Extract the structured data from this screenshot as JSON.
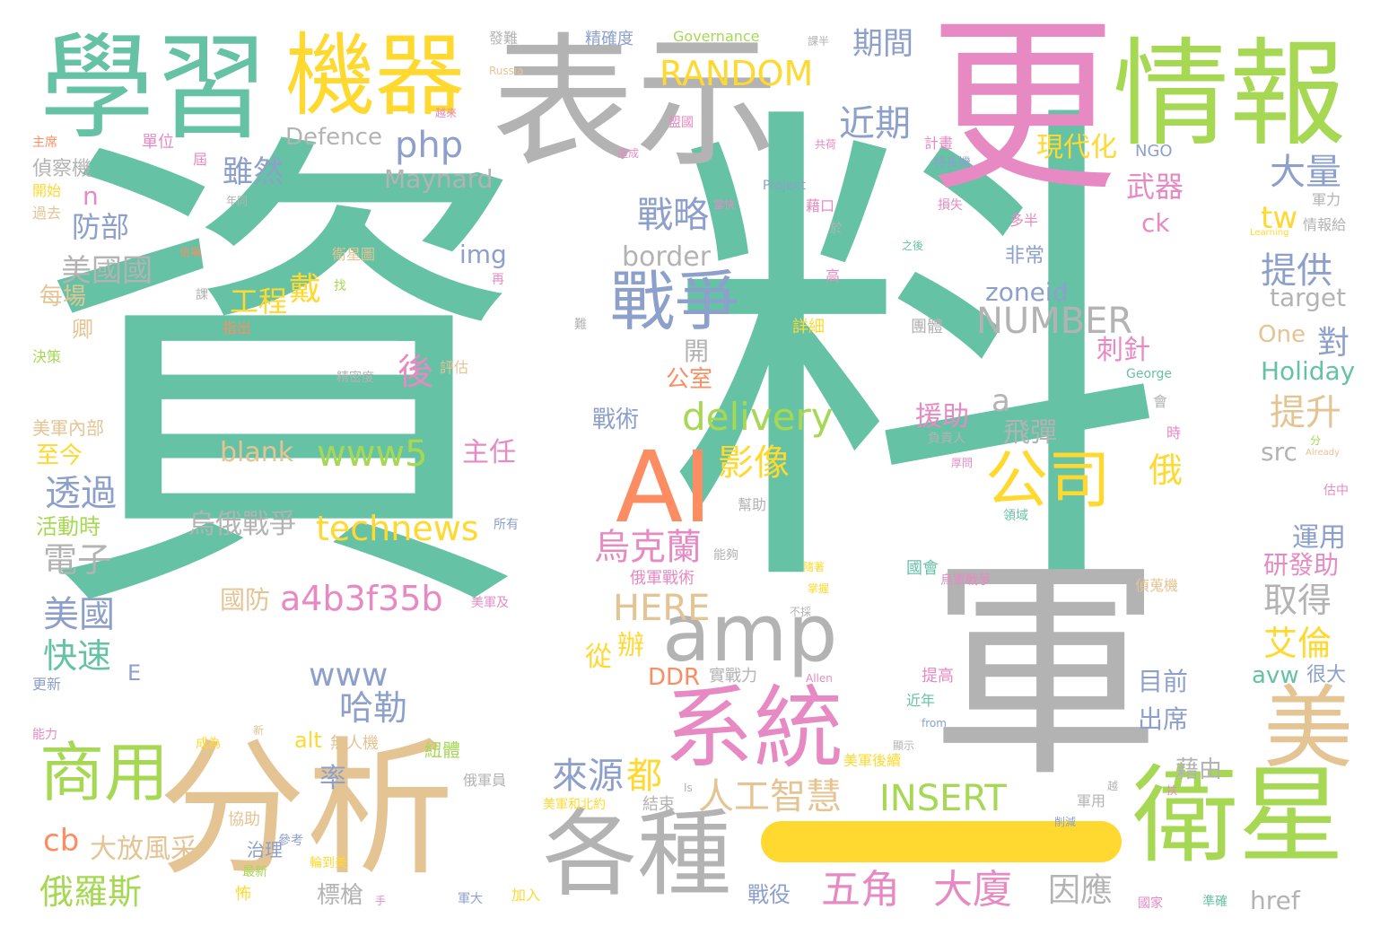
{
  "colors": {
    "teal": "#66c2a5",
    "gray": "#b3b3b3",
    "pink": "#e78ac3",
    "green": "#a6d854",
    "yellow": "#ffd92f",
    "tan": "#e5c494",
    "blue": "#8da0cb",
    "orange": "#fc8d62"
  },
  "separator_color": "yellow",
  "words": [
    {
      "text": "資",
      "color": "teal"
    },
    {
      "text": "料",
      "color": "teal"
    },
    {
      "text": "軍",
      "color": "gray"
    },
    {
      "text": "更",
      "color": "pink"
    },
    {
      "text": "表示",
      "color": "gray"
    },
    {
      "text": "學習",
      "color": "teal"
    },
    {
      "text": "機器",
      "color": "yellow"
    },
    {
      "text": "情報",
      "color": "green"
    },
    {
      "text": "分析",
      "color": "tan"
    },
    {
      "text": "衛星",
      "color": "green"
    },
    {
      "text": "各種",
      "color": "gray"
    },
    {
      "text": "系統",
      "color": "pink"
    },
    {
      "text": "AI",
      "color": "orange"
    },
    {
      "text": "amp",
      "color": "gray"
    },
    {
      "text": "美",
      "color": "tan"
    },
    {
      "text": "戰爭",
      "color": "blue"
    },
    {
      "text": "公司",
      "color": "yellow"
    },
    {
      "text": "商用",
      "color": "green"
    },
    {
      "text": "RANDOM",
      "color": "yellow"
    },
    {
      "text": "期間",
      "color": "blue"
    },
    {
      "text": "近期",
      "color": "blue"
    },
    {
      "text": "php",
      "color": "blue"
    },
    {
      "text": "Defence",
      "color": "gray"
    },
    {
      "text": "雖然",
      "color": "blue"
    },
    {
      "text": "Maynard",
      "color": "gray"
    },
    {
      "text": "戰略",
      "color": "blue"
    },
    {
      "text": "border",
      "color": "gray"
    },
    {
      "text": "NUMBER",
      "color": "gray"
    },
    {
      "text": "zoneid",
      "color": "blue"
    },
    {
      "text": "delivery",
      "color": "green"
    },
    {
      "text": "www5",
      "color": "green"
    },
    {
      "text": "technews",
      "color": "yellow"
    },
    {
      "text": "a4b3f35b",
      "color": "pink"
    },
    {
      "text": "HERE",
      "color": "tan"
    },
    {
      "text": "www",
      "color": "blue"
    },
    {
      "text": "INSERT",
      "color": "green"
    },
    {
      "text": "人工智慧",
      "color": "tan"
    },
    {
      "text": "來源",
      "color": "blue"
    },
    {
      "text": "都",
      "color": "yellow"
    },
    {
      "text": "五角",
      "color": "pink"
    },
    {
      "text": "大廈",
      "color": "pink"
    },
    {
      "text": "因應",
      "color": "gray"
    },
    {
      "text": "烏克蘭",
      "color": "pink"
    },
    {
      "text": "影像",
      "color": "yellow"
    },
    {
      "text": "美國國",
      "color": "gray"
    },
    {
      "text": "防部",
      "color": "blue"
    },
    {
      "text": "透過",
      "color": "blue"
    },
    {
      "text": "電子",
      "color": "gray"
    },
    {
      "text": "美國",
      "color": "blue"
    },
    {
      "text": "快速",
      "color": "teal"
    },
    {
      "text": "俄羅斯",
      "color": "green"
    },
    {
      "text": "cb",
      "color": "orange"
    },
    {
      "text": "大放風采",
      "color": "tan"
    },
    {
      "text": "哈勒",
      "color": "blue"
    },
    {
      "text": "大量",
      "color": "blue"
    },
    {
      "text": "提供",
      "color": "blue"
    },
    {
      "text": "提升",
      "color": "tan"
    },
    {
      "text": "取得",
      "color": "gray"
    },
    {
      "text": "艾倫",
      "color": "yellow"
    },
    {
      "text": "blank",
      "color": "tan"
    },
    {
      "text": "烏俄戰爭",
      "color": "gray"
    },
    {
      "text": "國防",
      "color": "tan"
    },
    {
      "text": "現代化",
      "color": "yellow"
    },
    {
      "text": "武器",
      "color": "pink"
    },
    {
      "text": "工程",
      "color": "yellow"
    },
    {
      "text": "戴",
      "color": "yellow"
    },
    {
      "text": "後",
      "color": "pink"
    },
    {
      "text": "img",
      "color": "blue"
    },
    {
      "text": "a",
      "color": "gray"
    },
    {
      "text": "target",
      "color": "gray"
    },
    {
      "text": "One",
      "color": "tan"
    },
    {
      "text": "Holiday",
      "color": "teal"
    },
    {
      "text": "src",
      "color": "gray"
    },
    {
      "text": "tw",
      "color": "yellow"
    },
    {
      "text": "ck",
      "color": "pink"
    },
    {
      "text": "對",
      "color": "blue"
    },
    {
      "text": "俄",
      "color": "yellow"
    },
    {
      "text": "運用",
      "color": "blue"
    },
    {
      "text": "研發助",
      "color": "pink"
    },
    {
      "text": "飛彈",
      "color": "gray"
    },
    {
      "text": "援助",
      "color": "pink"
    },
    {
      "text": "刺針",
      "color": "pink"
    },
    {
      "text": "目前",
      "color": "blue"
    },
    {
      "text": "出席",
      "color": "blue"
    },
    {
      "text": "avw",
      "color": "teal"
    },
    {
      "text": "很大",
      "color": "blue"
    },
    {
      "text": "藉由",
      "color": "gray"
    },
    {
      "text": "href",
      "color": "gray"
    },
    {
      "text": "標槍",
      "color": "gray"
    },
    {
      "text": "戰役",
      "color": "blue"
    },
    {
      "text": "DDR",
      "color": "orange"
    },
    {
      "text": "從",
      "color": "yellow"
    },
    {
      "text": "辦",
      "color": "yellow"
    },
    {
      "text": "主任",
      "color": "pink"
    },
    {
      "text": "戰術",
      "color": "blue"
    },
    {
      "text": "公室",
      "color": "orange"
    },
    {
      "text": "開",
      "color": "gray"
    },
    {
      "text": "率",
      "color": "blue"
    },
    {
      "text": "alt",
      "color": "yellow"
    },
    {
      "text": "非常",
      "color": "blue"
    },
    {
      "text": "卿",
      "color": "tan"
    },
    {
      "text": "每場",
      "color": "tan"
    },
    {
      "text": "n",
      "color": "pink"
    },
    {
      "text": "E",
      "color": "blue"
    },
    {
      "text": "至今",
      "color": "yellow"
    },
    {
      "text": "活動時",
      "color": "green"
    },
    {
      "text": "美軍內部",
      "color": "tan"
    },
    {
      "text": "偵察機",
      "color": "gray"
    },
    {
      "text": "開始",
      "color": "yellow"
    },
    {
      "text": "過去",
      "color": "tan"
    },
    {
      "text": "決策",
      "color": "green"
    },
    {
      "text": "更新",
      "color": "blue"
    },
    {
      "text": "能力",
      "color": "pink"
    },
    {
      "text": "單位",
      "color": "pink"
    },
    {
      "text": "無人機",
      "color": "tan"
    },
    {
      "text": "治理",
      "color": "blue"
    },
    {
      "text": "協助",
      "color": "tan"
    },
    {
      "text": "成為",
      "color": "yellow"
    },
    {
      "text": "最新",
      "color": "green"
    },
    {
      "text": "怖",
      "color": "yellow"
    },
    {
      "text": "紐體",
      "color": "green"
    },
    {
      "text": "美軍後續",
      "color": "yellow"
    },
    {
      "text": "俄軍員",
      "color": "gray"
    },
    {
      "text": "結束",
      "color": "gray"
    },
    {
      "text": "美軍和北約",
      "color": "yellow"
    },
    {
      "text": "實戰力",
      "color": "gray"
    },
    {
      "text": "俄軍戰術",
      "color": "pink"
    },
    {
      "text": "能夠",
      "color": "gray"
    },
    {
      "text": "國會",
      "color": "teal"
    },
    {
      "text": "烏軍戰爭",
      "color": "pink"
    },
    {
      "text": "提高",
      "color": "pink"
    },
    {
      "text": "近年",
      "color": "teal"
    },
    {
      "text": "詳細",
      "color": "yellow"
    },
    {
      "text": "團體",
      "color": "gray"
    },
    {
      "text": "負責人",
      "color": "gray"
    },
    {
      "text": "幫助",
      "color": "gray"
    },
    {
      "text": "領域",
      "color": "teal"
    },
    {
      "text": "偵蒐機",
      "color": "tan"
    },
    {
      "text": "軍用",
      "color": "gray"
    },
    {
      "text": "國家",
      "color": "pink"
    },
    {
      "text": "準確",
      "color": "teal"
    },
    {
      "text": "軍大",
      "color": "blue"
    },
    {
      "text": "加入",
      "color": "yellow"
    },
    {
      "text": "Governance",
      "color": "green"
    },
    {
      "text": "精確度",
      "color": "blue"
    },
    {
      "text": "發難",
      "color": "gray"
    },
    {
      "text": "Russia",
      "color": "tan"
    },
    {
      "text": "Project",
      "color": "blue"
    },
    {
      "text": "NGO",
      "color": "blue"
    },
    {
      "text": "George",
      "color": "teal"
    },
    {
      "text": "Allen",
      "color": "pink"
    },
    {
      "text": "Learning",
      "color": "yellow"
    },
    {
      "text": "Already",
      "color": "tan"
    },
    {
      "text": "from",
      "color": "blue"
    },
    {
      "text": "Is",
      "color": "gray"
    },
    {
      "text": "情報給",
      "color": "gray"
    },
    {
      "text": "軍力",
      "color": "gray"
    },
    {
      "text": "多半",
      "color": "pink"
    },
    {
      "text": "損失",
      "color": "pink"
    },
    {
      "text": "計畫",
      "color": "pink"
    },
    {
      "text": "特長機",
      "color": "blue"
    },
    {
      "text": "藉口",
      "color": "pink"
    },
    {
      "text": "盟國",
      "color": "pink"
    },
    {
      "text": "衛星圖",
      "color": "tan"
    },
    {
      "text": "評估",
      "color": "tan"
    },
    {
      "text": "精密度",
      "color": "gray"
    },
    {
      "text": "這些",
      "color": "teal"
    },
    {
      "text": "指出",
      "color": "orange"
    },
    {
      "text": "找",
      "color": "green"
    },
    {
      "text": "所有",
      "color": "blue"
    },
    {
      "text": "美軍及",
      "color": "pink"
    },
    {
      "text": "輪到美",
      "color": "yellow"
    },
    {
      "text": "手",
      "color": "pink"
    },
    {
      "text": "時",
      "color": "pink"
    },
    {
      "text": "分",
      "color": "green"
    },
    {
      "text": "估中",
      "color": "pink"
    },
    {
      "text": "會",
      "color": "gray"
    },
    {
      "text": "高",
      "color": "pink"
    },
    {
      "text": "於",
      "color": "gray"
    },
    {
      "text": "屆",
      "color": "pink"
    },
    {
      "text": "主席",
      "color": "orange"
    },
    {
      "text": "年同",
      "color": "gray"
    },
    {
      "text": "信場",
      "color": "orange"
    },
    {
      "text": "課",
      "color": "gray"
    },
    {
      "text": "參考",
      "color": "blue"
    },
    {
      "text": "再",
      "color": "pink"
    },
    {
      "text": "難",
      "color": "gray"
    },
    {
      "text": "越來",
      "color": "pink"
    },
    {
      "text": "造成",
      "color": "pink"
    },
    {
      "text": "掌握",
      "color": "yellow"
    },
    {
      "text": "不採",
      "color": "gray"
    },
    {
      "text": "削減",
      "color": "blue"
    },
    {
      "text": "扶",
      "color": "pink"
    },
    {
      "text": "之後",
      "color": "teal"
    },
    {
      "text": "共荷",
      "color": "pink"
    },
    {
      "text": "當快",
      "color": "pink"
    },
    {
      "text": "隨著",
      "color": "yellow"
    },
    {
      "text": "顯示",
      "color": "gray"
    },
    {
      "text": "厚問",
      "color": "pink"
    },
    {
      "text": "越",
      "color": "gray"
    },
    {
      "text": "新",
      "color": "tan"
    },
    {
      "text": "課半",
      "color": "gray"
    }
  ]
}
